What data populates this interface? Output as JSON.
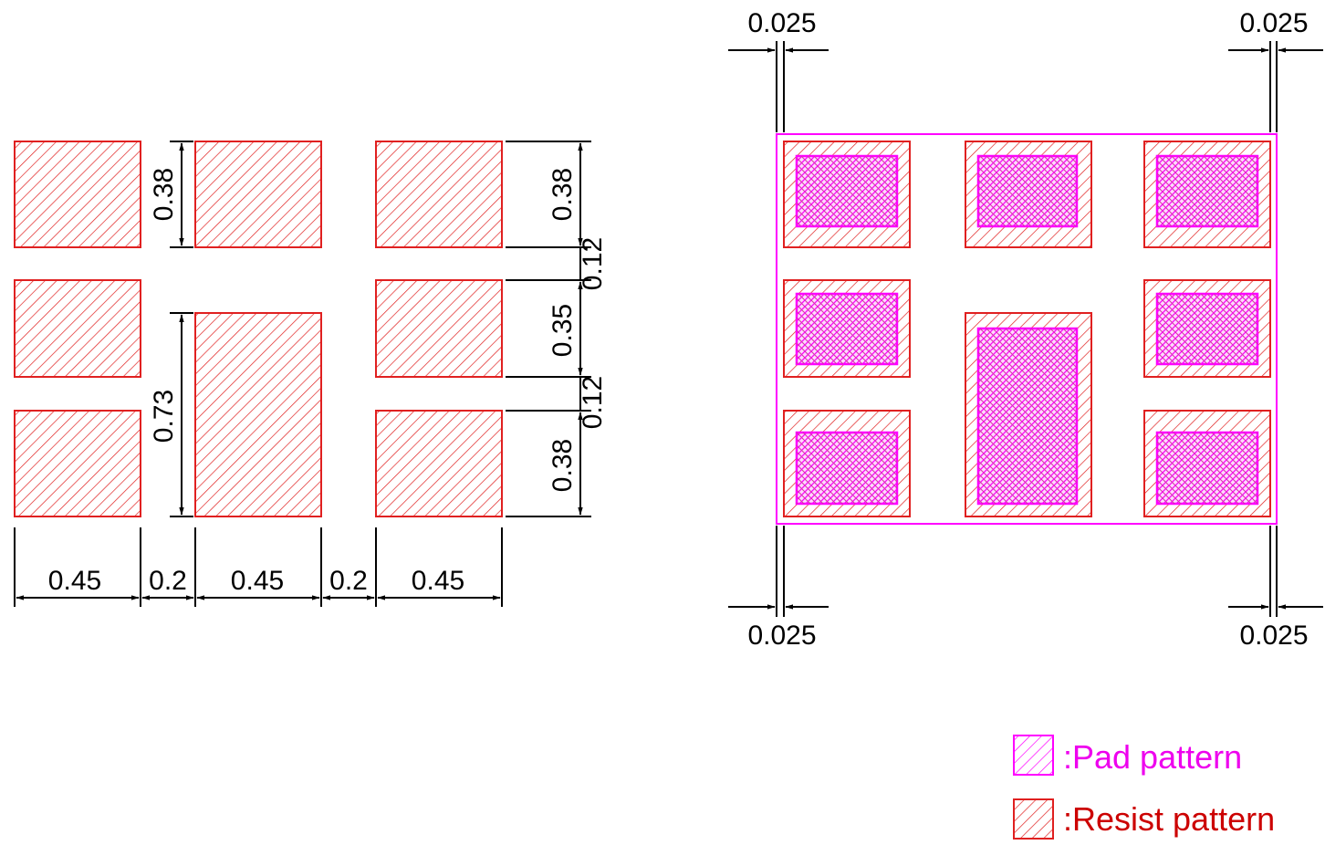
{
  "colors": {
    "resist": "#e02020",
    "pad": "#ff00ff",
    "pad_text": "#ee00ee",
    "resist_text": "#cc0000",
    "dimension_line": "#000000"
  },
  "left_diagram": {
    "widths": {
      "w1": "0.45",
      "gap1": "0.2",
      "w2": "0.45",
      "gap2": "0.2",
      "w3": "0.45"
    },
    "heights": {
      "center_top": "0.38",
      "center_tall": "0.73",
      "right_top": "0.38",
      "right_mid": "0.35",
      "right_bottom": "0.38",
      "gap_upper": "0.12",
      "gap_lower": "0.12"
    }
  },
  "right_diagram": {
    "offsets": {
      "top_left": "0.025",
      "top_right": "0.025",
      "bottom_left": "0.025",
      "bottom_right": "0.025"
    }
  },
  "legend": {
    "items": [
      {
        "label": ":Pad pattern",
        "icon": "pad-pattern-swatch"
      },
      {
        "label": ":Resist pattern",
        "icon": "resist-pattern-swatch"
      }
    ]
  }
}
